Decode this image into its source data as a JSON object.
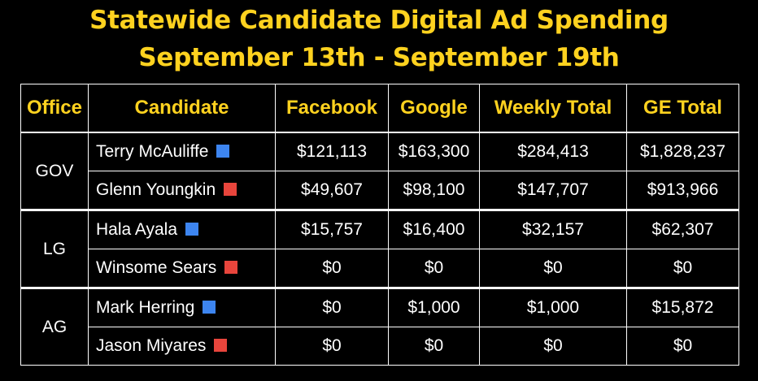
{
  "title": {
    "line1": "Statewide Candidate Digital Ad Spending",
    "line2": "September 13th - September 19th"
  },
  "colors": {
    "title": "#ffd21f",
    "democrat": "#3d85f0",
    "republican": "#e8453c",
    "background": "#000000"
  },
  "table": {
    "headers": [
      "Office",
      "Candidate",
      "Facebook",
      "Google",
      "Weekly Total",
      "GE Total"
    ],
    "groups": [
      {
        "office": "GOV",
        "rows": [
          {
            "candidate": "Terry McAuliffe",
            "party": "democrat",
            "facebook": "$121,113",
            "google": "$163,300",
            "weekly_total": "$284,413",
            "ge_total": "$1,828,237"
          },
          {
            "candidate": "Glenn Youngkin",
            "party": "republican",
            "facebook": "$49,607",
            "google": "$98,100",
            "weekly_total": "$147,707",
            "ge_total": "$913,966"
          }
        ]
      },
      {
        "office": "LG",
        "rows": [
          {
            "candidate": "Hala Ayala",
            "party": "democrat",
            "facebook": "$15,757",
            "google": "$16,400",
            "weekly_total": "$32,157",
            "ge_total": "$62,307"
          },
          {
            "candidate": "Winsome Sears",
            "party": "republican",
            "facebook": "$0",
            "google": "$0",
            "weekly_total": "$0",
            "ge_total": "$0"
          }
        ]
      },
      {
        "office": "AG",
        "rows": [
          {
            "candidate": "Mark Herring",
            "party": "democrat",
            "facebook": "$0",
            "google": "$1,000",
            "weekly_total": "$1,000",
            "ge_total": "$15,872"
          },
          {
            "candidate": "Jason Miyares",
            "party": "republican",
            "facebook": "$0",
            "google": "$0",
            "weekly_total": "$0",
            "ge_total": "$0"
          }
        ]
      }
    ]
  }
}
